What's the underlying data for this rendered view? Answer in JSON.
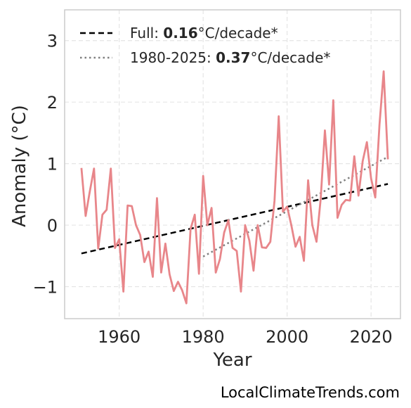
{
  "chart_data": {
    "type": "line",
    "title": "",
    "xlabel": "Year",
    "ylabel": "Anomaly (°C)",
    "xlim": [
      1947,
      2027
    ],
    "ylim": [
      -1.52,
      3.5
    ],
    "xticks": [
      1960,
      1980,
      2000,
      2020
    ],
    "yticks": [
      -1,
      0,
      1,
      2,
      3
    ],
    "ytick_labels": [
      "−1",
      "0",
      "1",
      "2",
      "3"
    ],
    "grid": true,
    "legend_position": "top-left",
    "colors": {
      "series": "#e8868a",
      "full_trend": "#000000",
      "recent_trend": "#7f7f7f"
    },
    "x": [
      1951,
      1952,
      1953,
      1954,
      1955,
      1956,
      1957,
      1958,
      1959,
      1960,
      1961,
      1962,
      1963,
      1964,
      1965,
      1966,
      1967,
      1968,
      1969,
      1970,
      1971,
      1972,
      1973,
      1974,
      1975,
      1976,
      1977,
      1978,
      1979,
      1980,
      1981,
      1982,
      1983,
      1984,
      1985,
      1986,
      1987,
      1988,
      1989,
      1990,
      1991,
      1992,
      1993,
      1994,
      1995,
      1996,
      1997,
      1998,
      1999,
      2000,
      2001,
      2002,
      2003,
      2004,
      2005,
      2006,
      2007,
      2008,
      2009,
      2010,
      2011,
      2012,
      2013,
      2014,
      2015,
      2016,
      2017,
      2018,
      2019,
      2020,
      2021,
      2022,
      2023,
      2024
    ],
    "series": [
      {
        "values": [
          0.93,
          0.15,
          0.55,
          0.92,
          -0.38,
          0.17,
          0.25,
          0.92,
          -0.37,
          -0.23,
          -1.08,
          0.32,
          0.31,
          0.0,
          -0.16,
          -0.6,
          -0.43,
          -0.84,
          0.44,
          -0.77,
          -0.3,
          -0.8,
          -1.07,
          -0.92,
          -1.06,
          -1.27,
          -0.06,
          0.17,
          -0.79,
          0.8,
          0.0,
          0.28,
          -0.77,
          -0.55,
          -0.12,
          0.08,
          -0.37,
          -0.42,
          -1.08,
          0.0,
          -0.25,
          -0.74,
          0.0,
          -0.36,
          -0.37,
          -0.27,
          0.4,
          1.77,
          0.22,
          0.3,
          0.0,
          -0.35,
          -0.19,
          -0.58,
          0.73,
          0.0,
          -0.27,
          0.43,
          1.54,
          0.66,
          2.03,
          0.12,
          0.33,
          0.41,
          0.4,
          1.12,
          0.48,
          1.04,
          1.35,
          0.76,
          0.45,
          1.63,
          2.5,
          1.07
        ]
      }
    ],
    "trends": [
      {
        "label_prefix": "Full: ",
        "label_value": "0.16",
        "label_suffix": "°C/decade*",
        "style": "dashed",
        "x0": 1951,
        "y0": -0.46,
        "x1": 2024,
        "y1": 0.67
      },
      {
        "label_prefix": "1980-2025: ",
        "label_value": "0.37",
        "label_suffix": "°C/decade*",
        "style": "dotted",
        "x0": 1980,
        "y0": -0.51,
        "x1": 2024,
        "y1": 1.11
      }
    ]
  },
  "footer": {
    "credit": "LocalClimateTrends.com"
  }
}
